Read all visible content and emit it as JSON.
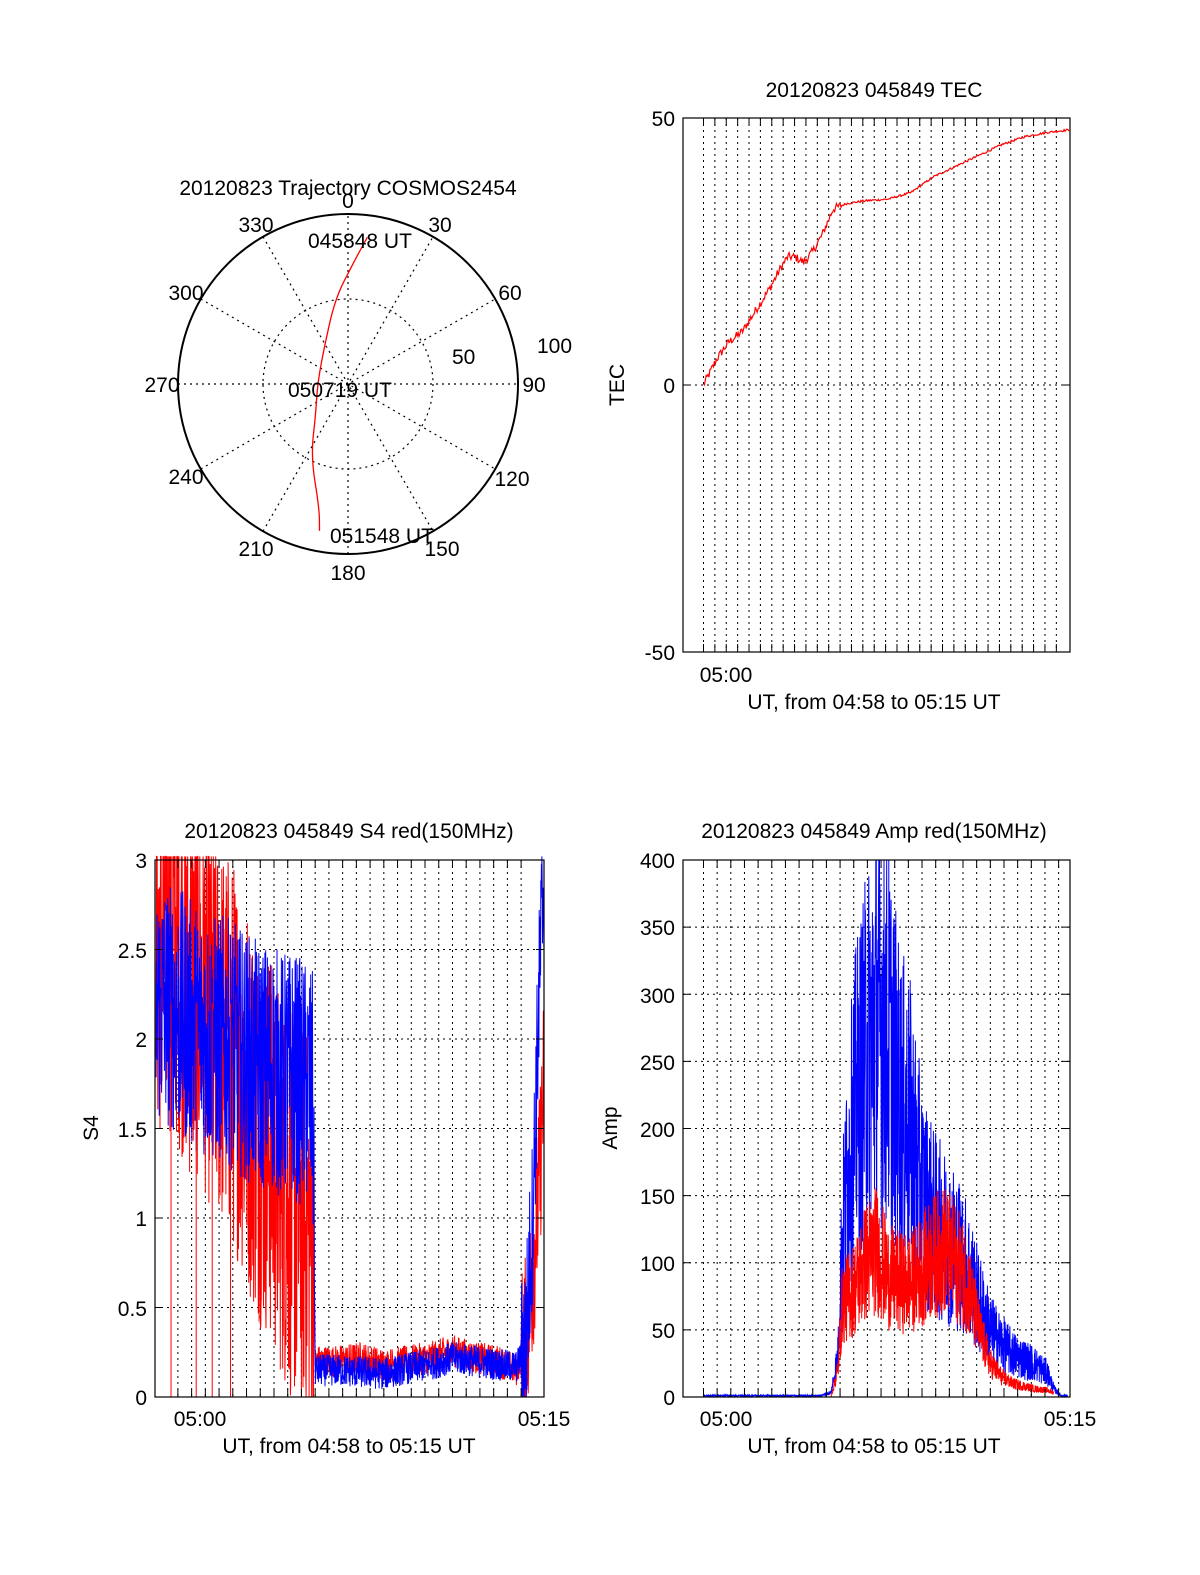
{
  "chart_data": [
    {
      "type": "polar",
      "title": "20120823 Trajectory COSMOS2454",
      "azimuth_labels": [
        "0",
        "30",
        "60",
        "90",
        "120",
        "150",
        "180",
        "210",
        "240",
        "270",
        "300",
        "330"
      ],
      "radial_labels": [
        "50",
        "100"
      ],
      "rlim": [
        0,
        100
      ],
      "grid": true,
      "colors": {
        "track": "#ff0000",
        "axes": "#000000"
      },
      "series": [
        {
          "points_az_r": [
            [
              7.5,
              87
            ],
            [
              2,
              70
            ],
            [
              351,
              50
            ],
            [
              323,
              24
            ],
            [
              268,
              18
            ],
            [
              225,
              27
            ],
            [
              207,
              48
            ],
            [
              193,
              75
            ],
            [
              191,
              88
            ]
          ]
        }
      ],
      "annotations": [
        "045848 UT",
        "050719 UT",
        "051548 UT"
      ]
    },
    {
      "type": "line",
      "title": "20120823 045849 TEC",
      "xlabel": "UT, from 04:58 to 05:15 UT",
      "ylabel": "TEC",
      "x_ticks": [
        "05:00"
      ],
      "y_ticks": [
        "-50",
        "0",
        "50"
      ],
      "xlim_minutes_after_0458": [
        0,
        17
      ],
      "ylim": [
        -50,
        50
      ],
      "grid": "vertical dotted",
      "colors": {
        "line": "#ff0000"
      },
      "series": [
        {
          "x_minutes_after_0458": [
            0.9,
            1.5,
            2.0,
            2.6,
            3.2,
            3.8,
            4.3,
            4.6,
            4.9,
            5.3,
            5.7,
            6.1,
            6.6,
            7.2,
            8.0,
            9.0,
            10.0,
            11.0,
            12.0,
            13.0,
            14.0,
            15.0,
            16.0,
            16.6,
            17.0
          ],
          "y": [
            0,
            5,
            8,
            10,
            14,
            18,
            22,
            24,
            24,
            23,
            25,
            28,
            33,
            34,
            34.5,
            34.8,
            36,
            39,
            41,
            43,
            45,
            46.5,
            47.3,
            47.6,
            47.8
          ]
        }
      ]
    },
    {
      "type": "line",
      "title": "20120823 045849 S4 red(150MHz)",
      "xlabel": "UT, from 04:58 to 05:15 UT",
      "ylabel": "S4",
      "x_ticks": [
        "05:00",
        "05:15"
      ],
      "y_ticks": [
        "0",
        "0.5",
        "1",
        "1.5",
        "2",
        "2.5",
        "3"
      ],
      "xlim_minutes_after_0458": [
        0,
        17
      ],
      "ylim": [
        0,
        3
      ],
      "grid": "dotted",
      "colors": {
        "red": "#ff0000",
        "blue": "#0000ff"
      },
      "series": [
        {
          "color": "red",
          "x_minutes_after_0458": [
            0.1,
            0.5,
            1.0,
            1.5,
            2.0,
            2.5,
            3.0,
            3.5,
            4.0,
            4.5,
            5.0,
            5.5,
            6.0,
            6.5,
            6.9,
            7.0,
            8.0,
            9.0,
            10.0,
            11.0,
            12.0,
            13.0,
            14.0,
            15.0,
            15.8,
            16.2,
            16.5,
            16.8,
            17.0
          ],
          "y": [
            2.5,
            2.6,
            2.5,
            2.3,
            2.3,
            2.1,
            2.0,
            1.9,
            1.7,
            1.5,
            1.4,
            1.2,
            1.05,
            1.0,
            0.9,
            0.2,
            0.2,
            0.22,
            0.18,
            0.2,
            0.22,
            0.26,
            0.22,
            0.2,
            0.15,
            0.3,
            0.7,
            1.2,
            1.8
          ]
        },
        {
          "color": "blue",
          "x_minutes_after_0458": [
            0.1,
            0.5,
            1.0,
            1.5,
            2.0,
            2.5,
            3.0,
            3.5,
            4.0,
            4.5,
            5.0,
            5.5,
            6.0,
            6.5,
            6.9,
            7.0,
            8.0,
            9.0,
            10.0,
            11.0,
            12.0,
            13.0,
            14.0,
            15.0,
            15.8,
            16.2,
            16.5,
            16.8,
            17.0
          ],
          "y": [
            2.2,
            2.2,
            2.15,
            2.1,
            2.05,
            2.0,
            2.0,
            1.95,
            1.9,
            1.85,
            1.85,
            1.8,
            1.8,
            1.75,
            1.7,
            0.15,
            0.15,
            0.14,
            0.13,
            0.16,
            0.18,
            0.22,
            0.2,
            0.18,
            0.17,
            0.3,
            1.0,
            2.3,
            3.0
          ]
        }
      ]
    },
    {
      "type": "line",
      "title": "20120823 045849 Amp red(150MHz)",
      "xlabel": "UT, from 04:58 to 05:15 UT",
      "ylabel": "Amp",
      "x_ticks": [
        "05:00",
        "05:15"
      ],
      "y_ticks": [
        "0",
        "50",
        "100",
        "150",
        "200",
        "250",
        "300",
        "350",
        "400"
      ],
      "xlim_minutes_after_0458": [
        0,
        17
      ],
      "ylim": [
        0,
        400
      ],
      "grid": "dotted",
      "colors": {
        "red": "#ff0000",
        "blue": "#0000ff"
      },
      "series": [
        {
          "color": "red",
          "x_minutes_after_0458": [
            0,
            2,
            4,
            6.0,
            6.5,
            6.8,
            7.0,
            7.5,
            8.0,
            8.5,
            9.0,
            9.5,
            10.0,
            10.5,
            11.0,
            11.5,
            12.0,
            12.5,
            13.0,
            13.5,
            14.0,
            14.5,
            15.0,
            15.5,
            16.0,
            16.3,
            16.6,
            17.0
          ],
          "y": [
            0,
            0,
            0,
            0,
            0,
            20,
            70,
            80,
            100,
            110,
            90,
            85,
            85,
            95,
            105,
            110,
            100,
            85,
            50,
            25,
            15,
            10,
            8,
            6,
            5,
            3,
            1,
            0
          ]
        },
        {
          "color": "blue",
          "x_minutes_after_0458": [
            0,
            2,
            4,
            6.0,
            6.5,
            6.8,
            7.0,
            7.5,
            8.0,
            8.5,
            9.0,
            9.5,
            10.0,
            10.5,
            11.0,
            11.5,
            12.0,
            12.5,
            13.0,
            13.5,
            14.0,
            14.5,
            15.0,
            15.5,
            16.0,
            16.3,
            16.6,
            17.0
          ],
          "y": [
            1,
            1,
            1,
            1,
            3,
            30,
            120,
            210,
            250,
            280,
            270,
            220,
            200,
            150,
            130,
            120,
            110,
            95,
            70,
            50,
            40,
            32,
            28,
            24,
            18,
            6,
            1,
            1
          ]
        }
      ]
    }
  ]
}
